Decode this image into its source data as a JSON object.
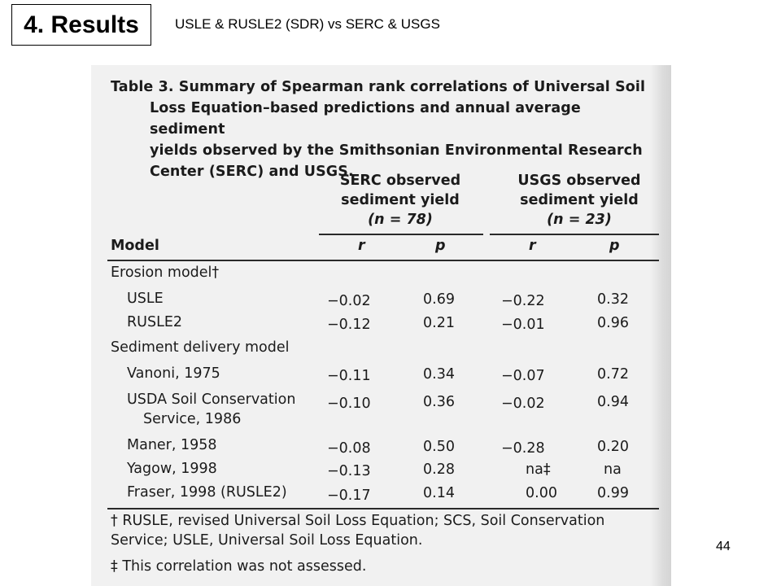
{
  "slide": {
    "title": "4. Results",
    "subtitle": "USLE & RUSLE2 (SDR) vs SERC & USGS",
    "page_number": "44"
  },
  "table": {
    "caption_line1": "Table 3. Summary of Spearman rank correlations of Universal Soil",
    "caption_line2": "Loss Equation–based predictions and annual average sediment",
    "caption_line3": "yields observed by the Smithsonian Environmental Research",
    "caption_line4": "Center (SERC) and USGS.",
    "serc_header_line1": "SERC observed",
    "serc_header_line2": "sediment yield",
    "serc_header_n": "(n = 78)",
    "usgs_header_line1": "USGS observed",
    "usgs_header_line2": "sediment yield",
    "usgs_header_n": "(n = 23)",
    "col_model": "Model",
    "col_r": "r",
    "col_p": "p",
    "group1": "Erosion model†",
    "group2": "Sediment delivery model",
    "rows": [
      {
        "model": "USLE",
        "serc_r": "−0.02",
        "serc_p": "0.69",
        "usgs_r": "−0.22",
        "usgs_p": "0.32"
      },
      {
        "model": "RUSLE2",
        "serc_r": "−0.12",
        "serc_p": "0.21",
        "usgs_r": "−0.01",
        "usgs_p": "0.96"
      },
      {
        "model": "Vanoni, 1975",
        "serc_r": "−0.11",
        "serc_p": "0.34",
        "usgs_r": "−0.07",
        "usgs_p": "0.72"
      },
      {
        "model": "USDA Soil Conservation",
        "model_line2": "Service, 1986",
        "serc_r": "−0.10",
        "serc_p": "0.36",
        "usgs_r": "−0.02",
        "usgs_p": "0.94"
      },
      {
        "model": "Maner, 1958",
        "serc_r": "−0.08",
        "serc_p": "0.50",
        "usgs_r": "−0.28",
        "usgs_p": "0.20"
      },
      {
        "model": "Yagow, 1998",
        "serc_r": "−0.13",
        "serc_p": "0.28",
        "usgs_r": "na‡",
        "usgs_p": "na"
      },
      {
        "model": "Fraser, 1998 (RUSLE2)",
        "serc_r": "−0.17",
        "serc_p": "0.14",
        "usgs_r": "0.00",
        "usgs_p": "0.99"
      }
    ],
    "footnote1_line1": "† RUSLE, revised Universal Soil Loss Equation; SCS, Soil Conservation",
    "footnote1_line2": "Service; USLE, Universal Soil Loss Equation.",
    "footnote2": "‡ This correlation was not assessed."
  }
}
